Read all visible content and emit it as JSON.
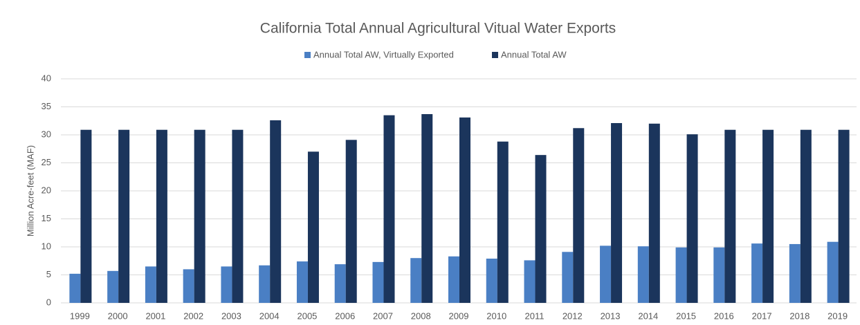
{
  "chart_data": {
    "type": "bar",
    "title": "California Total Annual Agricultural Vitual Water Exports",
    "y_label": "Million Acre-feet (MAF)",
    "categories": [
      "1999",
      "2000",
      "2001",
      "2002",
      "2003",
      "2004",
      "2005",
      "2006",
      "2007",
      "2008",
      "2009",
      "2010",
      "2011",
      "2012",
      "2013",
      "2014",
      "2015",
      "2016",
      "2017",
      "2018",
      "2019"
    ],
    "series": [
      {
        "name": "Annual Total AW, Virtually Exported",
        "color": "#4a7fc4",
        "values": [
          5.2,
          5.7,
          6.5,
          6.0,
          6.5,
          6.7,
          7.4,
          6.9,
          7.3,
          8.0,
          8.3,
          7.9,
          7.6,
          9.1,
          10.2,
          10.1,
          9.9,
          9.9,
          10.6,
          10.5,
          10.9
        ]
      },
      {
        "name": "Annual Total AW",
        "color": "#1b355c",
        "values": [
          30.9,
          30.9,
          30.9,
          30.9,
          30.9,
          32.6,
          27.0,
          29.1,
          33.5,
          33.7,
          33.1,
          28.8,
          26.4,
          31.2,
          32.1,
          32.0,
          30.1,
          30.9,
          30.9,
          30.9,
          30.9
        ]
      }
    ],
    "ylim": [
      0,
      40
    ],
    "yticks": [
      0,
      5,
      10,
      15,
      20,
      25,
      30,
      35,
      40
    ],
    "grid": true,
    "legend": "top"
  }
}
